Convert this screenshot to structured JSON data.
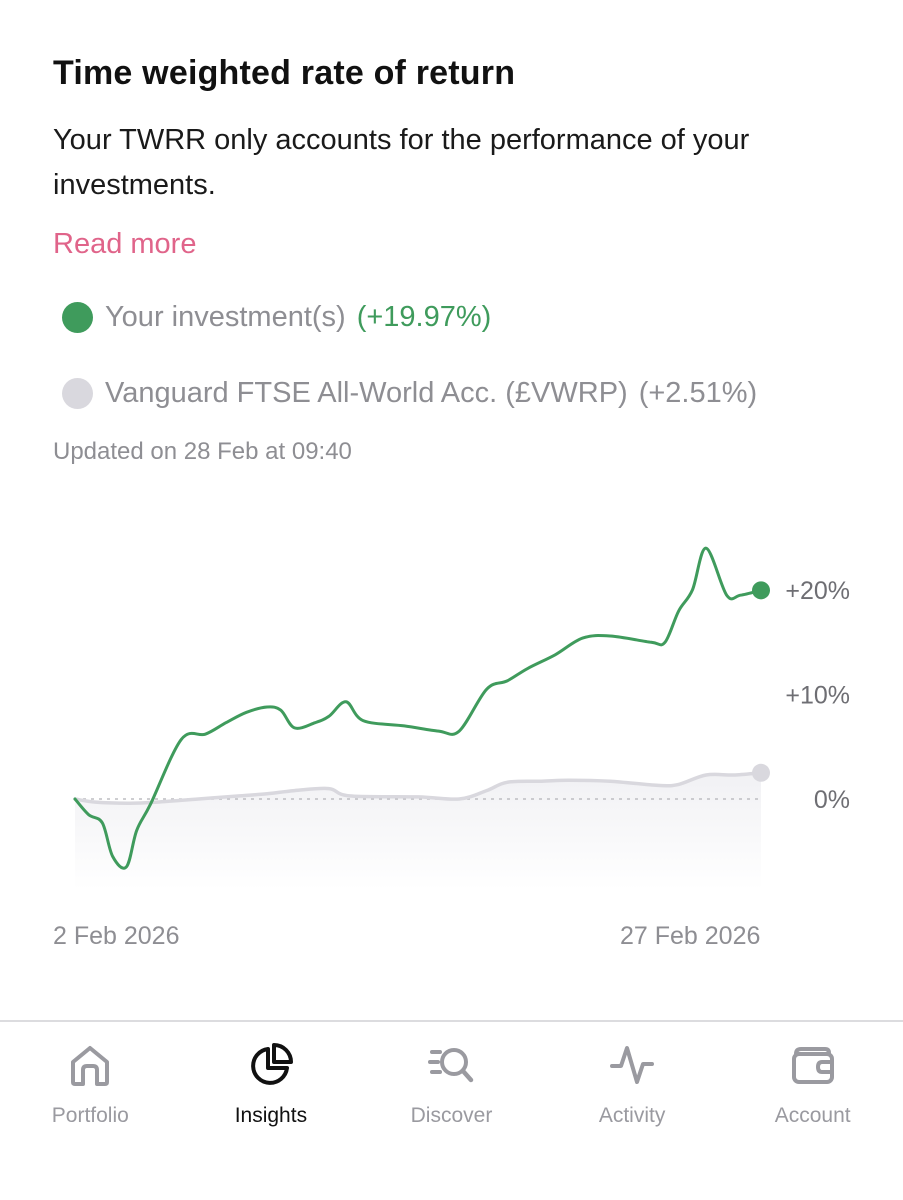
{
  "header": {
    "title": "Time weighted rate of return",
    "description": "Your TWRR only accounts for the performance of your investments.",
    "read_more": "Read more"
  },
  "legend": [
    {
      "name": "Your investment(s)",
      "change": "(+19.97%)",
      "color": "#3f9b5c"
    },
    {
      "name": "Vanguard FTSE All-World Acc. (£VWRP)",
      "change": "(+2.51%)",
      "color": "#d9d8de"
    }
  ],
  "updated": "Updated on 28 Feb at 09:40",
  "chart_data": {
    "type": "line",
    "x_start_label": "2 Feb 2026",
    "x_end_label": "27 Feb 2026",
    "y_ticks": [
      {
        "value": 20,
        "label": "+20%"
      },
      {
        "value": 10,
        "label": "+10%"
      },
      {
        "value": 0,
        "label": "0%"
      }
    ],
    "ylim": [
      -8,
      24
    ],
    "grid": false,
    "zero_line": "dotted",
    "series": [
      {
        "name": "Your investment(s)",
        "color": "#3f9b5c",
        "points": [
          [
            0,
            0.0
          ],
          [
            0.02,
            -1.5
          ],
          [
            0.04,
            -2.3
          ],
          [
            0.055,
            -5.5
          ],
          [
            0.075,
            -6.5
          ],
          [
            0.09,
            -3.0
          ],
          [
            0.11,
            -0.5
          ],
          [
            0.155,
            5.7
          ],
          [
            0.19,
            6.2
          ],
          [
            0.22,
            7.3
          ],
          [
            0.25,
            8.3
          ],
          [
            0.28,
            8.8
          ],
          [
            0.3,
            8.5
          ],
          [
            0.32,
            6.8
          ],
          [
            0.35,
            7.3
          ],
          [
            0.37,
            7.9
          ],
          [
            0.395,
            9.3
          ],
          [
            0.42,
            7.5
          ],
          [
            0.48,
            7.0
          ],
          [
            0.53,
            6.5
          ],
          [
            0.56,
            6.5
          ],
          [
            0.6,
            10.5
          ],
          [
            0.63,
            11.3
          ],
          [
            0.66,
            12.5
          ],
          [
            0.7,
            13.8
          ],
          [
            0.74,
            15.4
          ],
          [
            0.78,
            15.6
          ],
          [
            0.84,
            15.0
          ],
          [
            0.86,
            15.0
          ],
          [
            0.88,
            18.0
          ],
          [
            0.9,
            20.0
          ],
          [
            0.92,
            24.0
          ],
          [
            0.95,
            19.5
          ],
          [
            0.97,
            19.5
          ],
          [
            1.0,
            19.97
          ]
        ]
      },
      {
        "name": "Vanguard FTSE All-World Acc. (£VWRP)",
        "color": "#d9d8de",
        "points": [
          [
            0,
            0.0
          ],
          [
            0.03,
            -0.3
          ],
          [
            0.08,
            -0.4
          ],
          [
            0.12,
            -0.3
          ],
          [
            0.18,
            0.0
          ],
          [
            0.24,
            0.3
          ],
          [
            0.28,
            0.5
          ],
          [
            0.32,
            0.8
          ],
          [
            0.37,
            1.0
          ],
          [
            0.4,
            0.3
          ],
          [
            0.5,
            0.2
          ],
          [
            0.56,
            0.0
          ],
          [
            0.6,
            0.8
          ],
          [
            0.63,
            1.6
          ],
          [
            0.68,
            1.7
          ],
          [
            0.72,
            1.8
          ],
          [
            0.78,
            1.7
          ],
          [
            0.85,
            1.3
          ],
          [
            0.88,
            1.4
          ],
          [
            0.92,
            2.3
          ],
          [
            0.96,
            2.3
          ],
          [
            1.0,
            2.51
          ]
        ]
      }
    ]
  },
  "tabs": [
    {
      "label": "Portfolio",
      "icon": "home-icon",
      "active": false
    },
    {
      "label": "Insights",
      "icon": "pie-chart-icon",
      "active": true
    },
    {
      "label": "Discover",
      "icon": "discover-search-icon",
      "active": false
    },
    {
      "label": "Activity",
      "icon": "activity-pulse-icon",
      "active": false
    },
    {
      "label": "Account",
      "icon": "wallet-icon",
      "active": false
    }
  ],
  "colors": {
    "accent_link": "#e0648a",
    "positive": "#3f9b5c",
    "muted_text": "#8e8e93",
    "benchmark": "#d9d8de"
  }
}
